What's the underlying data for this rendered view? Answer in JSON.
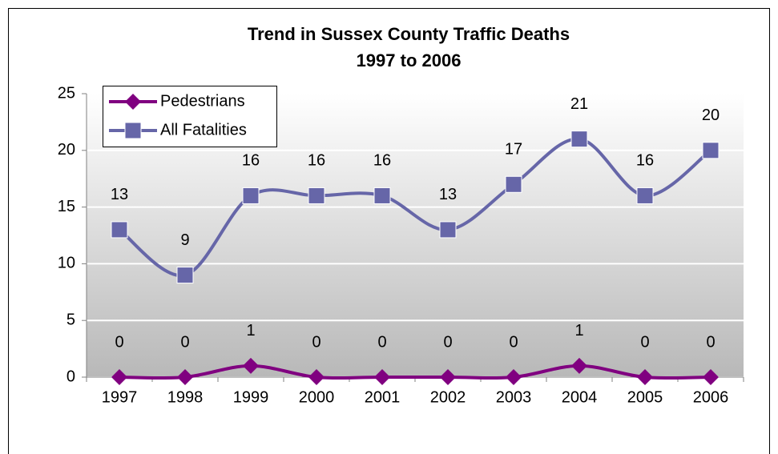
{
  "chart_data": {
    "type": "line",
    "title": "Trend in Sussex County Traffic Deaths",
    "subtitle": "1997 to 2006",
    "categories": [
      "1997",
      "1998",
      "1999",
      "2000",
      "2001",
      "2002",
      "2003",
      "2004",
      "2005",
      "2006"
    ],
    "series": [
      {
        "name": "Pedestrians",
        "color": "#800080",
        "marker": "diamond",
        "values": [
          0,
          0,
          1,
          0,
          0,
          0,
          0,
          1,
          0,
          0
        ]
      },
      {
        "name": "All Fatalities",
        "color": "#6666a8",
        "marker": "square",
        "values": [
          13,
          9,
          16,
          16,
          16,
          13,
          17,
          21,
          16,
          20
        ]
      }
    ],
    "ylim": [
      0,
      25
    ],
    "yticks": [
      0,
      5,
      10,
      15,
      20,
      25
    ],
    "grid": true,
    "smooth": true,
    "legend": "upper left"
  }
}
